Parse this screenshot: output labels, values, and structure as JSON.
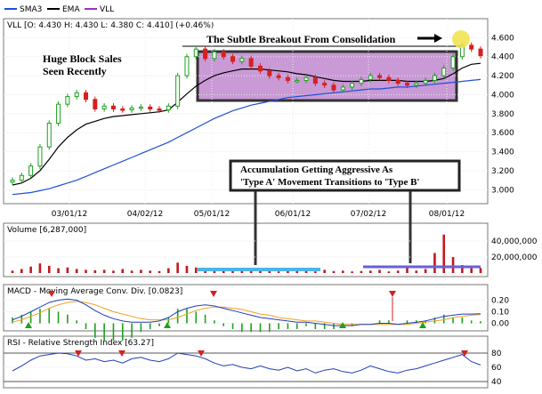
{
  "legend": {
    "items": [
      {
        "label": "SMA3",
        "color": "#1f4fd8"
      },
      {
        "label": "EMA",
        "color": "#000000"
      },
      {
        "label": "VLL",
        "color": "#9b30c8"
      }
    ]
  },
  "price_header": "VLL [O: 4.430  H: 4.430  L: 4.380  C: 4.410] (+0.46%)",
  "volume_header": "Volume [6,287,000]",
  "macd_header": "MACD - Moving Average Conv. Div. [0.0823]",
  "rsi_header": "RSI - Relative Strength Index [63.27]",
  "annotations": {
    "breakout": "The Subtle Breakout From Consolidation",
    "block_sales_1": "Huge Block Sales",
    "block_sales_2": "Seen Recently",
    "accum_1": "Accumulation Getting Aggressive As",
    "accum_2": "'Type A' Movement Transitions to 'Type B'"
  },
  "chart_data": [
    {
      "type": "line",
      "x_tick_labels": [
        "03/01/12",
        "04/02/12",
        "05/01/12",
        "06/01/12",
        "07/02/12",
        "08/01/12"
      ],
      "ylim": [
        2.9,
        4.65
      ],
      "y_tick_labels": [
        "3.000",
        "3.200",
        "3.400",
        "3.600",
        "3.800",
        "4.000",
        "4.200",
        "4.400",
        "4.600"
      ],
      "series": [
        {
          "name": "VLL",
          "close": [
            3.1,
            3.15,
            3.25,
            3.45,
            3.7,
            3.9,
            3.98,
            4.02,
            3.95,
            3.85,
            3.88,
            3.85,
            3.84,
            3.86,
            3.87,
            3.85,
            3.84,
            3.88,
            4.2,
            4.4,
            4.48,
            4.38,
            4.45,
            4.4,
            4.35,
            4.38,
            4.3,
            4.25,
            4.2,
            4.18,
            4.15,
            4.15,
            4.18,
            4.12,
            4.1,
            4.05,
            4.08,
            4.12,
            4.16,
            4.2,
            4.18,
            4.15,
            4.12,
            4.1,
            4.12,
            4.15,
            4.2,
            4.28,
            4.4,
            4.52,
            4.48,
            4.41
          ]
        },
        {
          "name": "EMA",
          "values": [
            3.05,
            3.07,
            3.12,
            3.2,
            3.32,
            3.45,
            3.55,
            3.63,
            3.69,
            3.72,
            3.75,
            3.77,
            3.78,
            3.79,
            3.8,
            3.81,
            3.82,
            3.84,
            3.92,
            4.01,
            4.09,
            4.15,
            4.2,
            4.23,
            4.25,
            4.27,
            4.27,
            4.27,
            4.26,
            4.25,
            4.24,
            4.22,
            4.21,
            4.19,
            4.17,
            4.15,
            4.14,
            4.14,
            4.14,
            4.15,
            4.15,
            4.15,
            4.15,
            4.14,
            4.14,
            4.14,
            4.15,
            4.17,
            4.22,
            4.28,
            4.32,
            4.33
          ]
        },
        {
          "name": "SMA3",
          "values": [
            2.95,
            2.96,
            2.97,
            2.99,
            3.01,
            3.04,
            3.07,
            3.1,
            3.14,
            3.18,
            3.22,
            3.26,
            3.3,
            3.34,
            3.38,
            3.42,
            3.46,
            3.5,
            3.55,
            3.6,
            3.65,
            3.7,
            3.75,
            3.79,
            3.83,
            3.86,
            3.89,
            3.91,
            3.93,
            3.95,
            3.97,
            3.98,
            3.99,
            4.0,
            4.01,
            4.02,
            4.03,
            4.04,
            4.05,
            4.06,
            4.06,
            4.07,
            4.08,
            4.08,
            4.09,
            4.1,
            4.11,
            4.12,
            4.13,
            4.14,
            4.15,
            4.16
          ]
        }
      ]
    },
    {
      "type": "bar",
      "ylim": [
        0,
        50000000
      ],
      "y_tick_labels": [
        "20,000,000",
        "40,000,000"
      ],
      "values": [
        3000000,
        5000000,
        8000000,
        12000000,
        9000000,
        6000000,
        7000000,
        5000000,
        4000000,
        3500000,
        4000000,
        3000000,
        5000000,
        3000000,
        4000000,
        3000000,
        2500000,
        6000000,
        13000000,
        9000000,
        7000000,
        5000000,
        4000000,
        3500000,
        3000000,
        2500000,
        4000000,
        3000000,
        5000000,
        2000000,
        3000000,
        2500000,
        3000000,
        2000000,
        4000000,
        2500000,
        3000000,
        2000000,
        2500000,
        3000000,
        4000000,
        2000000,
        3000000,
        8000000,
        3000000,
        5000000,
        25000000,
        48000000,
        20000000,
        10000000,
        6000000,
        6287000
      ]
    },
    {
      "type": "line",
      "ylim": [
        -0.05,
        0.25
      ],
      "y_tick_labels": [
        "0.00",
        "0.10",
        "0.20"
      ],
      "series": [
        {
          "name": "MACD",
          "values": [
            0.03,
            0.06,
            0.1,
            0.14,
            0.18,
            0.2,
            0.21,
            0.2,
            0.16,
            0.11,
            0.07,
            0.04,
            0.02,
            0.01,
            0.01,
            0.01,
            0.02,
            0.05,
            0.1,
            0.13,
            0.15,
            0.16,
            0.15,
            0.13,
            0.11,
            0.09,
            0.07,
            0.05,
            0.04,
            0.03,
            0.02,
            0.01,
            0.01,
            0.0,
            -0.01,
            -0.02,
            -0.02,
            -0.02,
            -0.01,
            -0.01,
            0.0,
            0.0,
            -0.01,
            0.0,
            0.01,
            0.02,
            0.04,
            0.06,
            0.07,
            0.08,
            0.08,
            0.082
          ]
        },
        {
          "name": "Signal",
          "values": [
            0.01,
            0.03,
            0.06,
            0.09,
            0.13,
            0.16,
            0.18,
            0.19,
            0.18,
            0.16,
            0.13,
            0.1,
            0.08,
            0.06,
            0.04,
            0.03,
            0.03,
            0.03,
            0.05,
            0.08,
            0.11,
            0.13,
            0.14,
            0.14,
            0.13,
            0.12,
            0.1,
            0.08,
            0.07,
            0.05,
            0.04,
            0.03,
            0.02,
            0.02,
            0.01,
            0.0,
            -0.01,
            -0.01,
            -0.01,
            -0.01,
            -0.01,
            -0.01,
            -0.01,
            -0.01,
            0.0,
            0.01,
            0.02,
            0.03,
            0.05,
            0.06,
            0.07,
            0.075
          ]
        }
      ]
    },
    {
      "type": "line",
      "ylim": [
        35,
        90
      ],
      "y_tick_labels": [
        "40",
        "60",
        "80"
      ],
      "series": [
        {
          "name": "RSI",
          "values": [
            55,
            62,
            70,
            76,
            78,
            80,
            79,
            76,
            70,
            72,
            68,
            70,
            66,
            72,
            74,
            70,
            68,
            72,
            80,
            78,
            76,
            72,
            66,
            62,
            64,
            60,
            58,
            62,
            58,
            56,
            60,
            55,
            58,
            52,
            56,
            58,
            54,
            52,
            56,
            62,
            58,
            54,
            52,
            56,
            58,
            62,
            66,
            70,
            74,
            78,
            68,
            63.27
          ]
        }
      ]
    }
  ]
}
